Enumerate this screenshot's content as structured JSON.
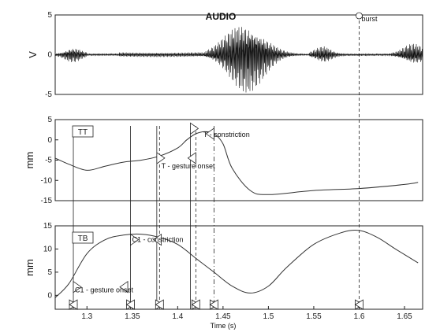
{
  "chart_data": [
    {
      "type": "line",
      "panel": "audio",
      "title": "AUDIO",
      "ylabel": "V",
      "ylim": [
        -5,
        5
      ],
      "yticks": [
        5,
        0,
        -5
      ],
      "annotations": [
        {
          "text": "burst",
          "x": 1.6,
          "y": 5
        }
      ]
    },
    {
      "type": "line",
      "panel": "TT",
      "series_label": "TT",
      "ylabel": "mm",
      "ylim": [
        -15,
        5
      ],
      "yticks": [
        5,
        0,
        -5,
        -10,
        -15
      ],
      "x": [
        1.265,
        1.28,
        1.3,
        1.32,
        1.34,
        1.36,
        1.38,
        1.4,
        1.41,
        1.42,
        1.43,
        1.44,
        1.45,
        1.46,
        1.48,
        1.5,
        1.55,
        1.6,
        1.65,
        1.665
      ],
      "y": [
        -4.5,
        -6,
        -7.5,
        -6.5,
        -5.5,
        -5,
        -4,
        -2,
        0,
        1.5,
        2,
        1.5,
        -1,
        -7,
        -12.5,
        -13.5,
        -12.5,
        -12,
        -11,
        -10.5
      ],
      "annotations": [
        {
          "text": "T - constriction",
          "x": 1.43,
          "y": 1.5
        },
        {
          "text": "T - gesture onset",
          "x": 1.382,
          "y": -6.5
        }
      ]
    },
    {
      "type": "line",
      "panel": "TB",
      "series_label": "TB",
      "ylabel": "mm",
      "xlabel": "Time (s)",
      "ylim": [
        -3,
        15
      ],
      "yticks": [
        15,
        10,
        5,
        0
      ],
      "xticks": [
        1.3,
        1.35,
        1.4,
        1.45,
        1.5,
        1.55,
        1.6,
        1.65
      ],
      "x": [
        1.265,
        1.28,
        1.3,
        1.32,
        1.34,
        1.36,
        1.38,
        1.4,
        1.42,
        1.44,
        1.46,
        1.48,
        1.5,
        1.52,
        1.55,
        1.58,
        1.6,
        1.62,
        1.64,
        1.665
      ],
      "y": [
        -0.5,
        2.5,
        9,
        12,
        13,
        13.2,
        12.5,
        11,
        8,
        5,
        2,
        0.5,
        2,
        6,
        11,
        13.5,
        14,
        12.5,
        10,
        7
      ],
      "annotations": [
        {
          "text": "C1 - constriction",
          "x": 1.348,
          "y": 12
        },
        {
          "text": "C1 - gesture onset",
          "x": 1.285,
          "y": 1
        }
      ]
    }
  ],
  "event_times": {
    "solid": [
      1.285,
      1.348,
      1.377,
      1.414
    ],
    "dashed": [
      1.38,
      1.42,
      1.6
    ],
    "dashdot": [
      1.44
    ]
  }
}
